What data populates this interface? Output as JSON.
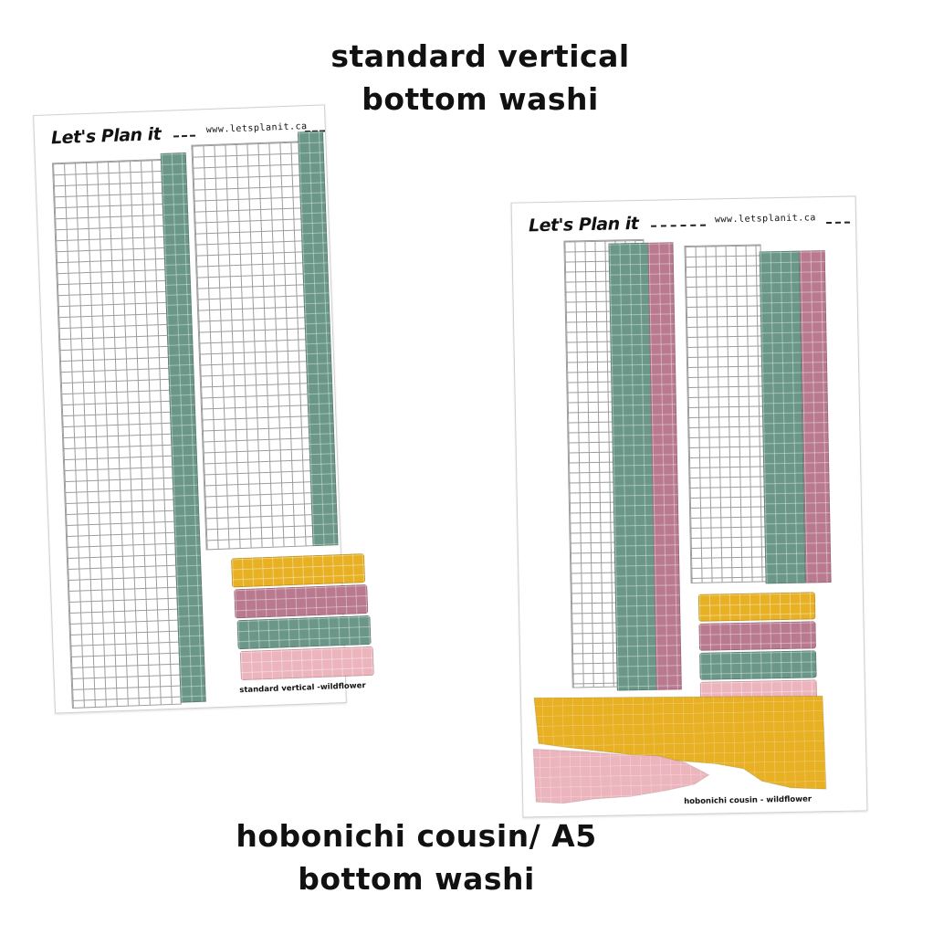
{
  "captions": {
    "top_line1": "standard vertical",
    "top_line2": "bottom washi",
    "bottom_line1": "hobonichi cousin/ A5",
    "bottom_line2": "bottom washi"
  },
  "sheet_standard": {
    "brand": "Let's Plan it",
    "url": "www.letsplanit.ca",
    "footer": "standard vertical -wildflower"
  },
  "sheet_hobonichi": {
    "brand": "Let's Plan it",
    "url": "www.letsplanit.ca",
    "footer": "hobonichi cousin - wildflower"
  },
  "colors": {
    "green": "#6b9789",
    "mauve": "#b97a8f",
    "yellow": "#e8b124",
    "pink": "#ecb5bd"
  }
}
